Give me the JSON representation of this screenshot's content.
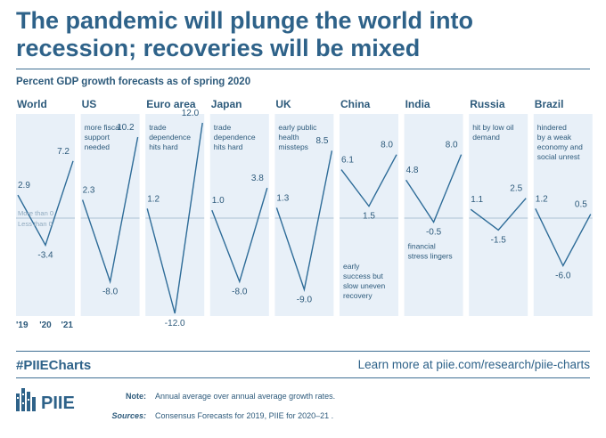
{
  "title": "The pandemic will plunge the world into recession; recoveries will be mixed",
  "subtitle": "Percent GDP growth forecasts as of spring 2020",
  "footer": {
    "hashtag": "#PIIECharts",
    "learn_more": "Learn more at piie.com/research/piie-charts",
    "logo_text": "PIIE",
    "note_label": "Note:",
    "note_text": "Annual average over annual average growth rates.",
    "sources_label": "Sources:",
    "sources_text": "Consensus Forecasts for 2019, PIIE for 2020–21 ."
  },
  "colors": {
    "line": "#2e6c98",
    "panel_bg": "#e8f0f8",
    "zero_line": "#9ab3c7",
    "text": "#2d5a7b",
    "title": "#2e6289"
  },
  "chart_data": {
    "type": "line",
    "x": [
      "'19",
      "'20",
      "'21"
    ],
    "ylim": [
      -12,
      12
    ],
    "zero_labels": {
      "above": "More than 0",
      "below": "Less than 0"
    },
    "panels": [
      {
        "name": "World",
        "values": [
          2.9,
          -3.4,
          7.2
        ],
        "labels": [
          "2.9",
          "-3.4",
          "7.2"
        ],
        "annotation": []
      },
      {
        "name": "US",
        "values": [
          2.3,
          -8.0,
          10.2
        ],
        "labels": [
          "2.3",
          "-8.0",
          "10.2"
        ],
        "annotation": [
          "more fiscal",
          "support",
          "needed"
        ]
      },
      {
        "name": "Euro area",
        "values": [
          1.2,
          -12.0,
          12.0
        ],
        "labels": [
          "1.2",
          "-12.0",
          "12.0"
        ],
        "annotation": [
          "trade",
          "dependence",
          "hits hard"
        ]
      },
      {
        "name": "Japan",
        "values": [
          1.0,
          -8.0,
          3.8
        ],
        "labels": [
          "1.0",
          "-8.0",
          "3.8"
        ],
        "annotation": [
          "trade",
          "dependence",
          "hits hard"
        ]
      },
      {
        "name": "UK",
        "values": [
          1.3,
          -9.0,
          8.5
        ],
        "labels": [
          "1.3",
          "-9.0",
          "8.5"
        ],
        "annotation": [
          "early public",
          "health",
          "missteps"
        ]
      },
      {
        "name": "China",
        "values": [
          6.1,
          1.5,
          8.0
        ],
        "labels": [
          "6.1",
          "1.5",
          "8.0"
        ],
        "annotation": [
          "early",
          "success but",
          "slow uneven",
          "recovery"
        ]
      },
      {
        "name": "India",
        "values": [
          4.8,
          -0.5,
          8.0
        ],
        "labels": [
          "4.8",
          "-0.5",
          "8.0"
        ],
        "annotation": [
          "financial",
          "stress lingers"
        ]
      },
      {
        "name": "Russia",
        "values": [
          1.1,
          -1.5,
          2.5
        ],
        "labels": [
          "1.1",
          "-1.5",
          "2.5"
        ],
        "annotation": [
          "hit by low oil",
          "demand"
        ]
      },
      {
        "name": "Brazil",
        "values": [
          1.2,
          -6.0,
          0.5
        ],
        "labels": [
          "1.2",
          "-6.0",
          "0.5"
        ],
        "annotation": [
          "hindered",
          "by a weak",
          "economy and",
          "social unrest"
        ]
      }
    ]
  }
}
